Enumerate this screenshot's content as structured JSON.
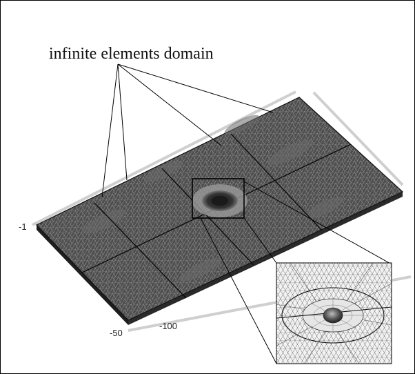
{
  "figure": {
    "annotation_label": "infinite elements domain",
    "axis_ticks": {
      "left": "-1",
      "bottom_first": "-50",
      "bottom_second": "-100"
    },
    "colors": {
      "mesh_dark": "#4a4a4a",
      "mesh_light": "#e8e8e8",
      "edge_gray": "#c8c8c8",
      "line": "#000000"
    },
    "parts": {
      "slab": "meshed slab (top view)",
      "zoom_box": "refined region",
      "inset": "zoomed mesh detail"
    }
  }
}
